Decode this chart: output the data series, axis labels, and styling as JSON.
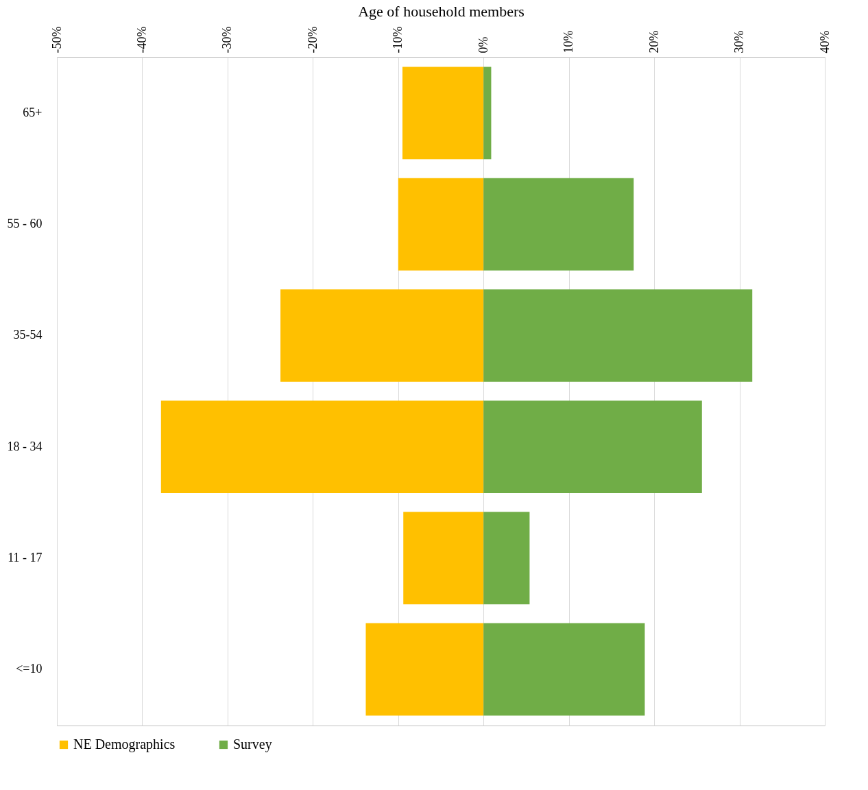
{
  "chart_data": {
    "type": "bar",
    "orientation": "horizontal",
    "stacked": true,
    "xlabel": "Age of household members",
    "categories": [
      "65+",
      "55 - 60",
      "35-54",
      "18 - 34",
      "11 - 17",
      "<=10"
    ],
    "series": [
      {
        "name": "NE Demographics",
        "color": "#ffc000",
        "values": [
          -9.5,
          -10,
          -23.8,
          -37.8,
          -9.4,
          -13.8
        ]
      },
      {
        "name": "Survey",
        "color": "#70ad47",
        "values": [
          0.9,
          17.6,
          31.5,
          25.6,
          5.4,
          18.9
        ]
      }
    ],
    "xlim": [
      -50,
      40
    ],
    "xticks": [
      {
        "value": -50,
        "label": "-50%"
      },
      {
        "value": -40,
        "label": "-40%"
      },
      {
        "value": -30,
        "label": "-30%"
      },
      {
        "value": -20,
        "label": "-20%"
      },
      {
        "value": -10,
        "label": "-10%"
      },
      {
        "value": 0,
        "label": "0%"
      },
      {
        "value": 10,
        "label": "10%"
      },
      {
        "value": 20,
        "label": "20%"
      },
      {
        "value": 30,
        "label": "30%"
      },
      {
        "value": 40,
        "label": "40%"
      }
    ],
    "grid": "x",
    "legend": "bottom"
  }
}
